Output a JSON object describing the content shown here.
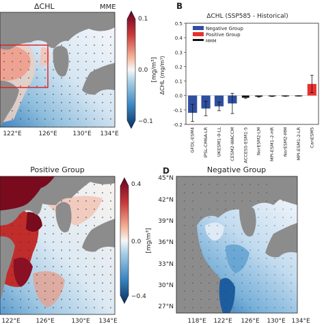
{
  "panels": {
    "A": {
      "title": "ΔCHL",
      "subtitle": "MME",
      "x_ticks": [
        "122°E",
        "126°E",
        "130°E",
        "134°E"
      ],
      "colorbar": {
        "ticks": [
          "0.1",
          "0.0",
          "−0.1"
        ],
        "label": "[mg/m³]",
        "range": [
          -0.1,
          0.1
        ]
      }
    },
    "B": {
      "letter": "B",
      "title": "ΔCHL (SSP585 - Historical)",
      "ylabel": "ΔCHL (mg/m³)",
      "legend": [
        "Negative Group",
        "Positive Group",
        "MMM"
      ]
    },
    "C": {
      "title": "Positive Group",
      "x_ticks": [
        "122°E",
        "126°E",
        "130°E",
        "134°E"
      ],
      "colorbar": {
        "ticks": [
          "0.4",
          "0.0",
          "−0.4"
        ],
        "label": "[mg/m³]",
        "range": [
          -0.4,
          0.4
        ]
      }
    },
    "D": {
      "letter": "D",
      "title": "Negative Group",
      "x_ticks": [
        "118°E",
        "122°E",
        "126°E",
        "130°E",
        "134°E"
      ],
      "y_ticks": [
        "45°N",
        "42°N",
        "39°N",
        "36°N",
        "33°N",
        "30°N",
        "27°N"
      ]
    }
  },
  "chart_data": [
    {
      "type": "bar",
      "panel": "B",
      "title": "ΔCHL (SSP585 - Historical)",
      "xlabel": "",
      "ylabel": "ΔCHL (mg/m³)",
      "ylim": [
        -0.2,
        0.5
      ],
      "yticks": [
        -0.2,
        -0.1,
        0.0,
        0.1,
        0.2,
        0.3,
        0.4,
        0.5
      ],
      "grid": false,
      "legend_position": "top-left",
      "categories": [
        "GFDL-ESM4",
        "IPSL-CM6A-LR",
        "UKESM1-0-LL",
        "CESM2-WACCM",
        "ACCESS-ESM1-5",
        "NorESM2-LM",
        "MPI-ESM1-2-HR",
        "NorESM2-MM",
        "MPI-ESM1-2-LR",
        "CanESM5"
      ],
      "values": [
        -0.12,
        -0.09,
        -0.075,
        -0.055,
        -0.015,
        -0.008,
        -0.005,
        -0.004,
        -0.003,
        0.08
      ],
      "errors": [
        0.06,
        0.05,
        0.03,
        0.07,
        0.005,
        0.003,
        0.002,
        0.002,
        0.002,
        0.06
      ],
      "groups": [
        "negative",
        "negative",
        "negative",
        "negative",
        "mmm",
        "mmm",
        "mmm",
        "mmm",
        "mmm",
        "positive"
      ],
      "colors": {
        "negative": "#2f4f9f",
        "positive": "#e8312f",
        "mmm": "#111111"
      }
    }
  ]
}
